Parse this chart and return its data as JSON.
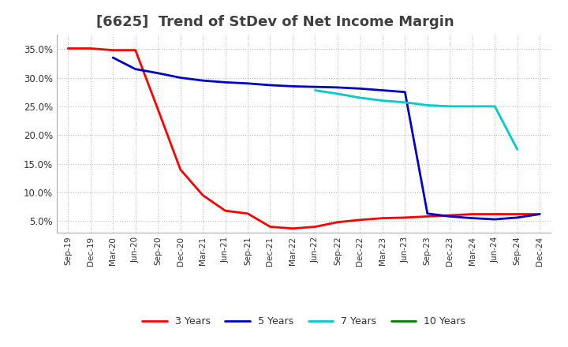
{
  "title": "[6625]  Trend of StDev of Net Income Margin",
  "x_labels": [
    "Sep-19",
    "Dec-19",
    "Mar-20",
    "Jun-20",
    "Sep-20",
    "Dec-20",
    "Mar-21",
    "Jun-21",
    "Sep-21",
    "Dec-21",
    "Mar-22",
    "Jun-22",
    "Sep-22",
    "Dec-22",
    "Mar-23",
    "Jun-23",
    "Sep-23",
    "Dec-23",
    "Mar-24",
    "Jun-24",
    "Sep-24",
    "Dec-24"
  ],
  "series": {
    "3 Years": {
      "color": "#FF0000",
      "data": [
        0.351,
        0.351,
        0.348,
        0.348,
        0.245,
        0.14,
        0.095,
        0.068,
        0.063,
        0.04,
        0.037,
        0.04,
        0.048,
        0.052,
        0.055,
        0.056,
        0.058,
        0.06,
        0.062,
        0.062,
        0.062,
        0.062
      ]
    },
    "5 Years": {
      "color": "#0000CC",
      "data": [
        null,
        null,
        0.335,
        0.315,
        0.308,
        0.3,
        0.295,
        0.292,
        0.29,
        0.287,
        0.285,
        0.284,
        0.283,
        0.281,
        0.278,
        0.275,
        0.063,
        0.058,
        0.055,
        0.053,
        0.056,
        0.062
      ]
    },
    "7 Years": {
      "color": "#00CCCC",
      "data": [
        null,
        null,
        null,
        null,
        null,
        null,
        null,
        null,
        null,
        null,
        null,
        0.278,
        0.272,
        0.265,
        0.26,
        0.257,
        0.252,
        0.25,
        0.25,
        0.25,
        0.175,
        null
      ]
    },
    "10 Years": {
      "color": "#008000",
      "data": [
        null,
        null,
        null,
        null,
        null,
        null,
        null,
        null,
        null,
        null,
        null,
        null,
        null,
        null,
        null,
        null,
        null,
        null,
        null,
        null,
        null,
        null
      ]
    }
  },
  "ylim": [
    0.03,
    0.375
  ],
  "yticks": [
    0.05,
    0.1,
    0.15,
    0.2,
    0.25,
    0.3,
    0.35
  ],
  "background_color": "#FFFFFF",
  "grid_color": "#BBBBBB",
  "title_fontsize": 13,
  "title_color": "#404040"
}
